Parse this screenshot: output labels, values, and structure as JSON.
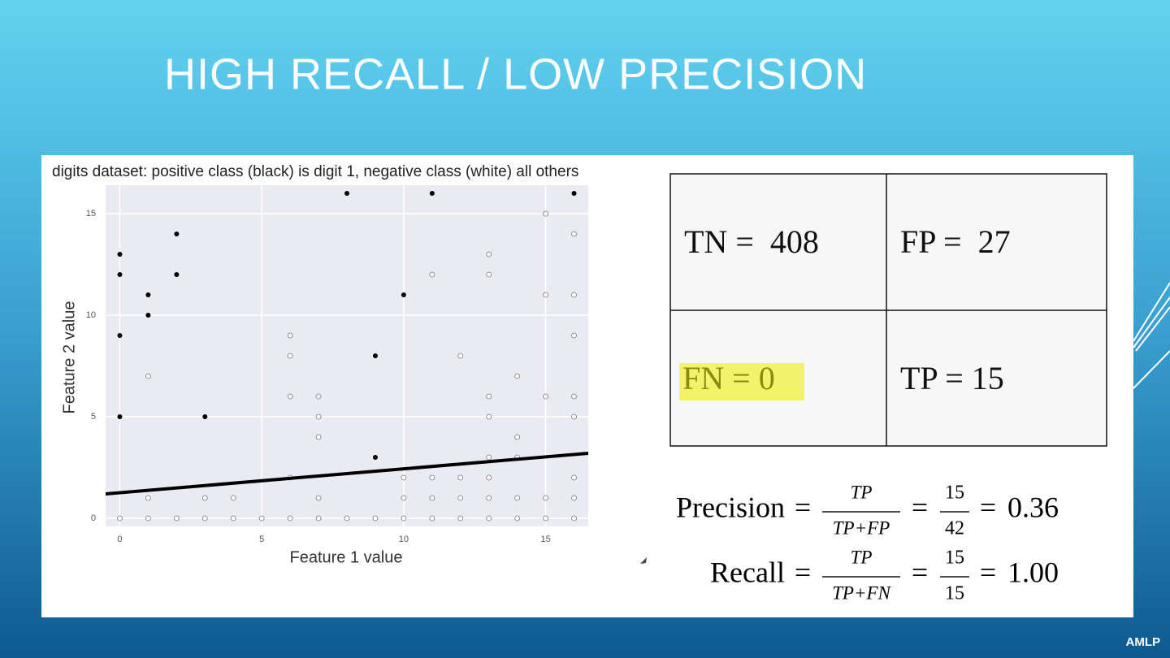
{
  "title": "HIGH RECALL / LOW PRECISION",
  "chart_data": {
    "type": "scatter",
    "title": "digits dataset: positive class (black) is digit 1, negative class (white) all others",
    "xlabel": "Feature 1 value",
    "ylabel": "Feature 2 value",
    "xlim": [
      -0.5,
      16.5
    ],
    "ylim": [
      -0.4,
      16.4
    ],
    "xticks": [
      0,
      5,
      10,
      15
    ],
    "yticks": [
      0,
      5,
      10,
      15
    ],
    "grid": true,
    "series": [
      {
        "color": "#000000",
        "x": [
          0,
          0,
          0,
          0,
          1,
          1,
          2,
          2,
          3,
          8,
          9,
          9,
          10,
          11,
          16
        ],
        "values": [
          13,
          12,
          9,
          5,
          11,
          10,
          14,
          12,
          5,
          16,
          8,
          3,
          11,
          16,
          16
        ]
      },
      {
        "color": "#ffffff",
        "x": [
          0,
          1,
          2,
          3,
          4,
          5,
          6,
          7,
          8,
          9,
          10,
          11,
          12,
          13,
          14,
          15,
          16,
          1,
          3,
          4,
          7,
          10,
          11,
          12,
          13,
          14,
          15,
          16,
          6,
          10,
          11,
          12,
          13,
          16,
          13,
          14,
          1,
          6,
          6,
          6,
          7,
          7,
          7,
          11,
          12,
          13,
          13,
          13,
          13,
          14,
          14,
          15,
          15,
          15,
          16,
          16,
          16,
          16,
          16
        ],
        "values": [
          0,
          0,
          0,
          0,
          0,
          0,
          0,
          0,
          0,
          0,
          0,
          0,
          0,
          0,
          0,
          0,
          0,
          1,
          1,
          1,
          1,
          1,
          1,
          1,
          1,
          1,
          1,
          1,
          2,
          2,
          2,
          2,
          2,
          2,
          3,
          3,
          7,
          9,
          8,
          6,
          6,
          5,
          4,
          12,
          8,
          13,
          12,
          6,
          5,
          7,
          4,
          15,
          11,
          6,
          14,
          11,
          9,
          6,
          5
        ]
      },
      {
        "type": "line",
        "color": "#000000",
        "x": [
          -0.5,
          16.5
        ],
        "values": [
          1.2,
          3.2
        ]
      }
    ]
  },
  "matrix": {
    "cells": [
      [
        "TN =  408",
        "FP =  27"
      ],
      [
        "FN = 0",
        "TP = 15"
      ]
    ],
    "highlight": "#f3f36b"
  },
  "formulas": [
    {
      "label": "Precision",
      "eq": "=",
      "numerator": "TP",
      "denominator": "TP+FP",
      "num": "15",
      "den": "42",
      "result": "0.36"
    },
    {
      "label": "Recall",
      "eq": "=",
      "numerator": "TP",
      "denominator": "TP+FN",
      "num": "15",
      "den": "15",
      "result": "1.00"
    }
  ],
  "footer": "AMLP"
}
